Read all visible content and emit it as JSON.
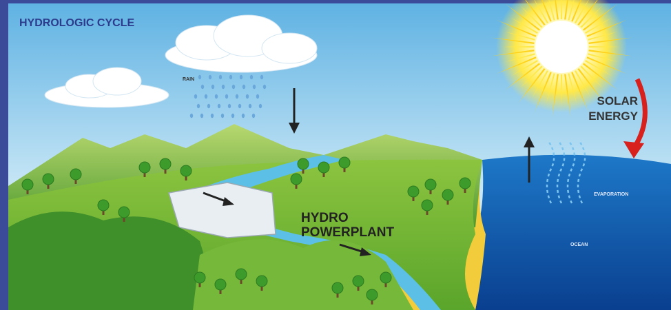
{
  "title": "HYDROLOGIC CYCLE",
  "labels": {
    "rain": "RAIN",
    "solar_energy": [
      "SOLAR",
      "ENERGY"
    ],
    "evaporation": "EVAPORATION",
    "ocean": "OCEAN",
    "hydro_powerplant": [
      "HYDRO",
      "POWERPLANT"
    ]
  }
}
